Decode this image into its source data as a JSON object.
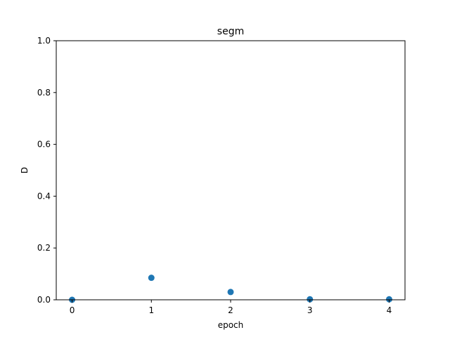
{
  "chart_data": {
    "type": "scatter",
    "title": "segm",
    "xlabel": "epoch",
    "ylabel": "D",
    "xlim": [
      -0.2,
      4.2
    ],
    "ylim": [
      0,
      1
    ],
    "xticks": [
      0,
      1,
      2,
      3,
      4
    ],
    "yticks": [
      0.0,
      0.2,
      0.4,
      0.6,
      0.8,
      1.0
    ],
    "xtick_labels": [
      "0",
      "1",
      "2",
      "3",
      "4"
    ],
    "ytick_labels": [
      "0.0",
      "0.2",
      "0.4",
      "0.6",
      "0.8",
      "1.0"
    ],
    "grid": false,
    "series": [
      {
        "color": "#1f77b4",
        "x": [
          0,
          1,
          2,
          3,
          4
        ],
        "y": [
          0.0,
          0.085,
          0.03,
          0.002,
          0.002
        ]
      }
    ]
  }
}
